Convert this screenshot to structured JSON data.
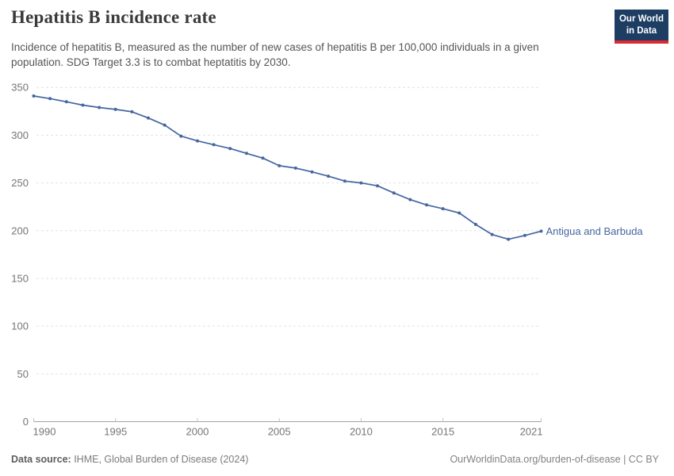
{
  "header": {
    "title": "Hepatitis B incidence rate",
    "subtitle_line1": "Incidence of hepatitis B, measured as the number of new cases of hepatitis B per 100,000 individuals in a",
    "subtitle_line2": "given population. SDG Target 3.3 is to combat heptatitis by 2030."
  },
  "logo": {
    "line1": "Our World",
    "line2": "in Data",
    "bg_color": "#1d3d63",
    "stripe_color": "#dc2a30"
  },
  "chart_data": {
    "type": "line",
    "title": "Hepatitis B incidence rate",
    "entity": "Antigua and Barbuda",
    "x": [
      1990,
      1991,
      1992,
      1993,
      1994,
      1995,
      1996,
      1997,
      1998,
      1999,
      2000,
      2001,
      2002,
      2003,
      2004,
      2005,
      2006,
      2007,
      2008,
      2009,
      2010,
      2011,
      2012,
      2013,
      2014,
      2015,
      2016,
      2017,
      2018,
      2019,
      2020,
      2021
    ],
    "values": [
      341,
      338.3,
      335,
      331.5,
      329,
      327,
      324.5,
      318,
      310.5,
      299,
      294,
      290,
      286,
      281,
      276,
      268,
      265.5,
      261.5,
      257,
      252,
      250,
      247,
      239.5,
      232.5,
      227,
      223,
      218.5,
      206.5,
      196,
      191,
      195,
      199.5
    ],
    "xlim": [
      1990,
      2021
    ],
    "ylim": [
      0,
      350
    ],
    "x_ticks": [
      1990,
      1995,
      2000,
      2005,
      2010,
      2015,
      2021
    ],
    "y_ticks": [
      0,
      50,
      100,
      150,
      200,
      250,
      300,
      350
    ],
    "grid": "horizontal-dashed",
    "legend_position": "label-right-of-last-point",
    "line_color": "#4566a0",
    "axis_color": "#a3a3a3",
    "gridline_color": "#e2e2e2",
    "tick_label_color": "#757575"
  },
  "footer": {
    "source_label": "Data source:",
    "source_text": " IHME, Global Burden of Disease (2024)",
    "right_text": "OurWorldinData.org/burden-of-disease | CC BY"
  }
}
